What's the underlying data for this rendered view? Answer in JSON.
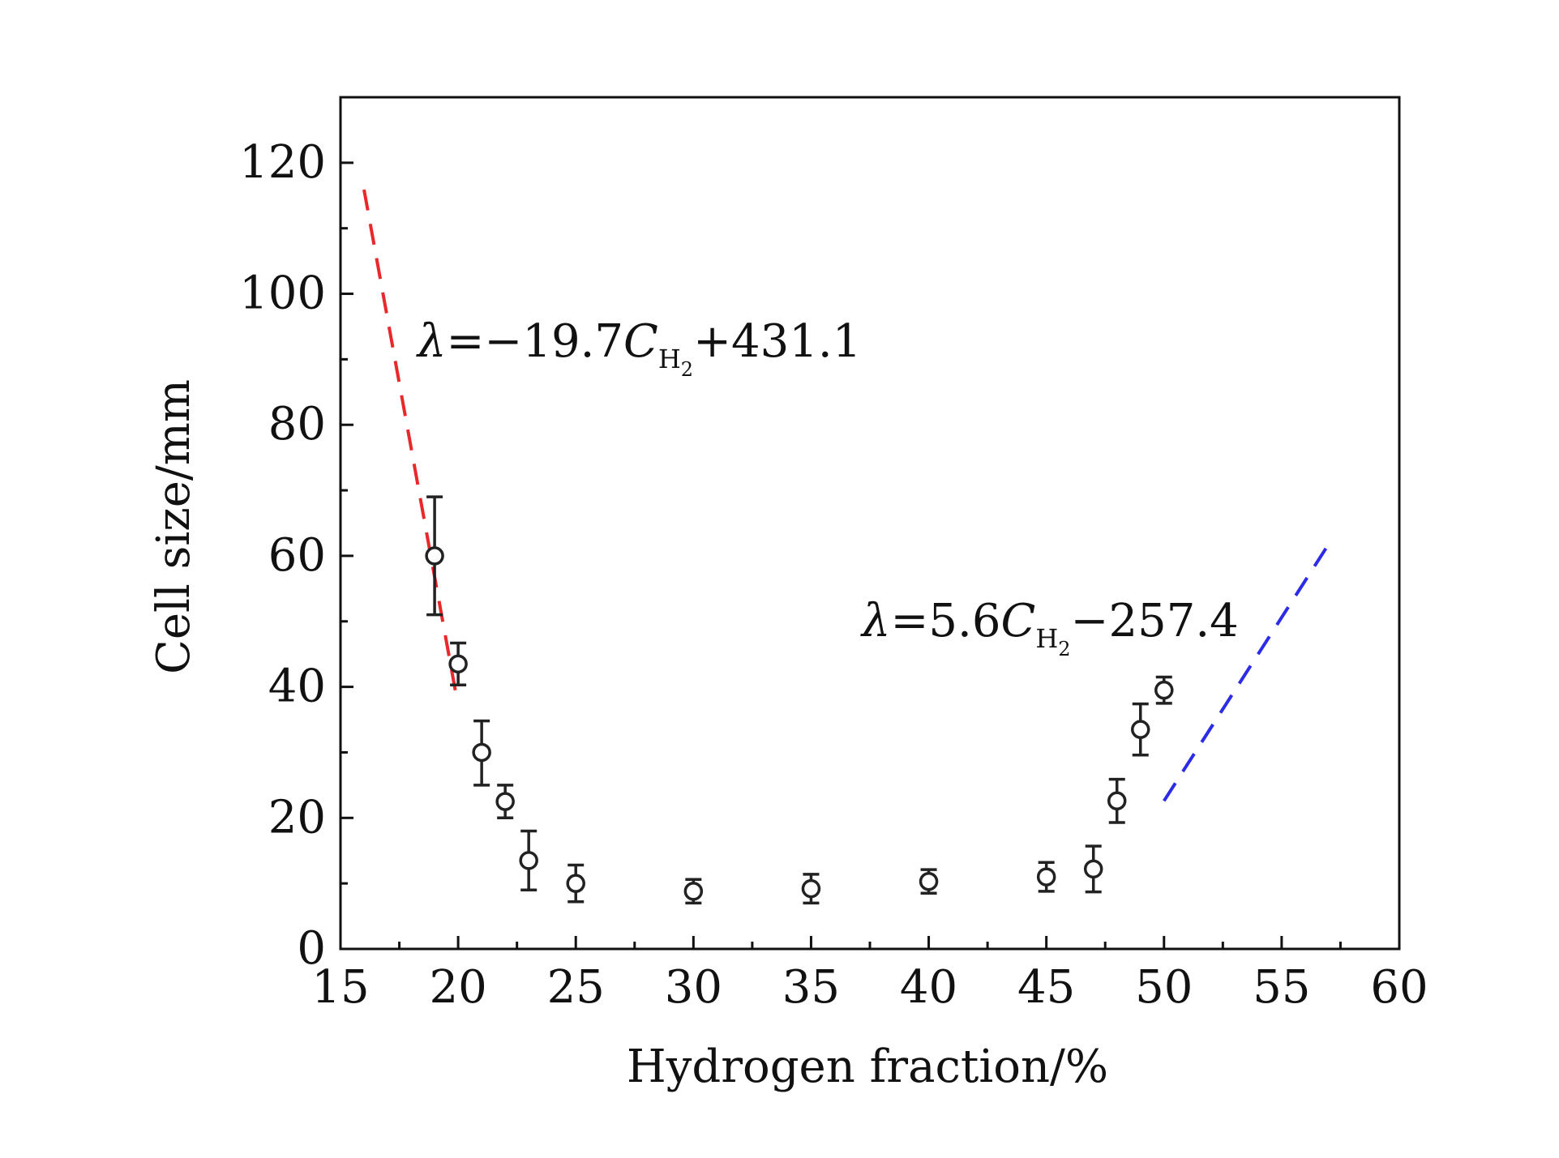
{
  "chart_data": {
    "type": "scatter",
    "xlabel": "Hydrogen fraction/%",
    "ylabel": "Cell size/mm",
    "xlim": [
      15,
      60
    ],
    "ylim": [
      0,
      130
    ],
    "xticks": [
      15,
      20,
      25,
      30,
      35,
      40,
      45,
      50,
      55,
      60
    ],
    "yticks": [
      0,
      20,
      40,
      60,
      80,
      100,
      120
    ],
    "grid": false,
    "series": [
      {
        "marker": "open-circle",
        "color": "#222222",
        "x": [
          19,
          20,
          21,
          22,
          23,
          25,
          30,
          35,
          40,
          45,
          47,
          48,
          49,
          50
        ],
        "y": [
          60,
          43.5,
          30,
          22.5,
          13.5,
          10,
          8.8,
          9.2,
          10.3,
          11,
          12.2,
          22.6,
          33.5,
          39.5
        ],
        "err_low": [
          9,
          3.2,
          5,
          2.5,
          4.5,
          2.8,
          1.8,
          2.2,
          1.8,
          2.2,
          3.5,
          3.3,
          3.9,
          2
        ],
        "err_high": [
          9,
          3.2,
          4.8,
          2.5,
          4.5,
          2.8,
          1.8,
          2.2,
          1.8,
          2.2,
          3.5,
          3.3,
          3.9,
          2
        ]
      }
    ],
    "fit_lines": [
      {
        "color": "#e8282b",
        "style": "dashed",
        "slope": -19.7,
        "intercept": 431.1,
        "x_range": [
          16,
          19.9
        ]
      },
      {
        "color": "#2b2be8",
        "style": "dashed",
        "slope": 5.6,
        "intercept": -257.4,
        "x_range": [
          50,
          57
        ]
      }
    ],
    "annotations": [
      {
        "lambda": "λ",
        "eq": "=−19.7",
        "var": "C",
        "sub": "H",
        "subsub": "2",
        "tail": "+431.1"
      },
      {
        "lambda": "λ",
        "eq": "=5.6",
        "var": "C",
        "sub": "H",
        "subsub": "2",
        "tail": "−257.4"
      }
    ]
  }
}
